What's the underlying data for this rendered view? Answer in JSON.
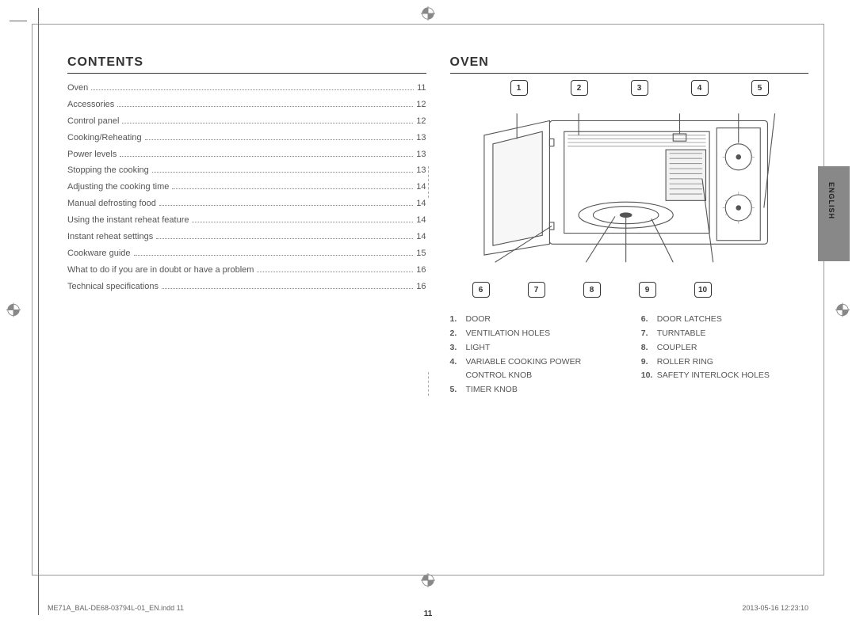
{
  "page_number": "11",
  "footer_left": "ME71A_BAL-DE68-03794L-01_EN.indd   11",
  "footer_right": "2013-05-16    12:23:10",
  "language_tab": "ENGLISH",
  "contents": {
    "title": "CONTENTS",
    "items": [
      {
        "label": "Oven",
        "page": "11"
      },
      {
        "label": "Accessories",
        "page": "12"
      },
      {
        "label": "Control panel",
        "page": "12"
      },
      {
        "label": "Cooking/Reheating",
        "page": "13"
      },
      {
        "label": "Power levels",
        "page": "13"
      },
      {
        "label": "Stopping the cooking",
        "page": "13"
      },
      {
        "label": "Adjusting the cooking time",
        "page": "14"
      },
      {
        "label": "Manual defrosting food",
        "page": "14"
      },
      {
        "label": "Using the instant reheat feature",
        "page": "14"
      },
      {
        "label": "Instant reheat settings",
        "page": "14"
      },
      {
        "label": "Cookware guide",
        "page": "15"
      },
      {
        "label": "What to do if you are in doubt or have a problem",
        "page": "16"
      },
      {
        "label": "Technical specifications",
        "page": "16"
      }
    ]
  },
  "oven": {
    "title": "OVEN",
    "top_callouts": [
      "1",
      "2",
      "3",
      "4",
      "5"
    ],
    "bottom_callouts": [
      "6",
      "7",
      "8",
      "9",
      "10"
    ],
    "parts_left": [
      {
        "n": "1.",
        "t": "DOOR"
      },
      {
        "n": "2.",
        "t": "VENTILATION HOLES"
      },
      {
        "n": "3.",
        "t": "LIGHT"
      },
      {
        "n": "4.",
        "t": "VARIABLE COOKING POWER CONTROL KNOB"
      },
      {
        "n": "5.",
        "t": "TIMER KNOB"
      }
    ],
    "parts_right": [
      {
        "n": "6.",
        "t": "DOOR LATCHES"
      },
      {
        "n": "7.",
        "t": "TURNTABLE"
      },
      {
        "n": "8.",
        "t": "COUPLER"
      },
      {
        "n": "9.",
        "t": "ROLLER RING"
      },
      {
        "n": "10.",
        "t": "SAFETY INTERLOCK HOLES"
      }
    ],
    "diagram": {
      "stroke": "#555",
      "fill": "#fff",
      "grill_fill": "#f2f2f2"
    }
  }
}
